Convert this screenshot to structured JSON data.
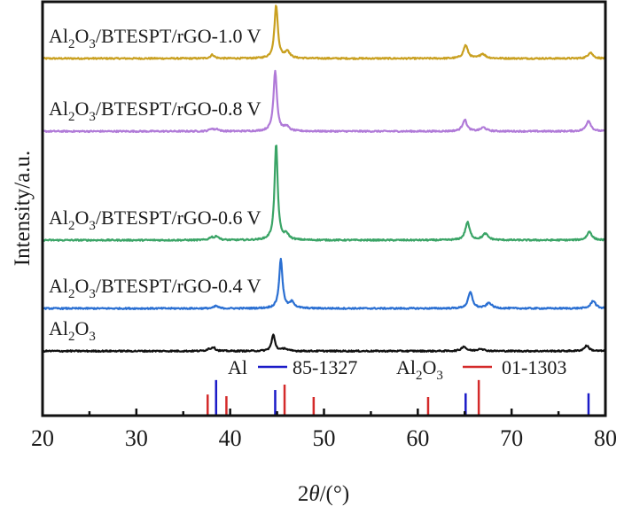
{
  "chart_data": {
    "type": "line",
    "title": "",
    "xlabel_prefix": "2",
    "xlabel_symbol": "θ",
    "xlabel_suffix": "/(°)",
    "ylabel": "Intensity/a.u.",
    "xlim": [
      20,
      80
    ],
    "ylim": [
      0,
      100
    ],
    "x_ticks": [
      20,
      30,
      40,
      50,
      60,
      70,
      80
    ],
    "x_tick_labels": [
      "20",
      "30",
      "40",
      "50",
      "60",
      "70",
      "80"
    ],
    "x_minor_step": 5,
    "grid": false,
    "y_ticks_shown": false,
    "series": [
      {
        "name": "Al2O3/BTESPT/rGO-1.0 V",
        "label_main": "Al",
        "label_sub1": "2",
        "label_mid": "O",
        "label_sub2": "3",
        "label_rest": "/BTESPT/rGO-1.0 V",
        "color": "#c9a020",
        "baseline": 86.3,
        "peaks": [
          [
            38.1,
            0.9,
            0.25
          ],
          [
            44.9,
            12.8,
            0.22
          ],
          [
            46.1,
            1.7,
            0.3
          ],
          [
            65.1,
            3.2,
            0.28
          ],
          [
            66.9,
            1.1,
            0.35
          ],
          [
            78.4,
            1.5,
            0.3
          ]
        ]
      },
      {
        "name": "Al2O3/BTESPT/rGO-0.8 V",
        "label_main": "Al",
        "label_sub1": "2",
        "label_mid": "O",
        "label_sub2": "3",
        "label_rest": "/BTESPT/rGO-0.8 V",
        "color": "#b07ad8",
        "baseline": 68.7,
        "peaks": [
          [
            38.0,
            0.6,
            0.25
          ],
          [
            38.6,
            0.5,
            0.25
          ],
          [
            44.8,
            14.6,
            0.22
          ],
          [
            46.0,
            1.1,
            0.3
          ],
          [
            65.0,
            2.8,
            0.28
          ],
          [
            67.0,
            0.9,
            0.35
          ],
          [
            78.2,
            2.6,
            0.3
          ]
        ]
      },
      {
        "name": "Al2O3/BTESPT/rGO-0.6 V",
        "label_main": "Al",
        "label_sub1": "2",
        "label_mid": "O",
        "label_sub2": "3",
        "label_rest": "/BTESPT/rGO-0.6 V",
        "color": "#3aa466",
        "baseline": 42.4,
        "peaks": [
          [
            38.0,
            0.7,
            0.25
          ],
          [
            38.6,
            0.9,
            0.25
          ],
          [
            44.9,
            23.3,
            0.2
          ],
          [
            46.0,
            1.3,
            0.3
          ],
          [
            65.3,
            4.3,
            0.28
          ],
          [
            67.2,
            1.5,
            0.35
          ],
          [
            78.3,
            2.1,
            0.3
          ]
        ]
      },
      {
        "name": "Al2O3/BTESPT/rGO-0.4 V",
        "label_main": "Al",
        "label_sub1": "2",
        "label_mid": "O",
        "label_sub2": "3",
        "label_rest": "/BTESPT/rGO-0.4 V",
        "color": "#2a6fd2",
        "baseline": 25.9,
        "peaks": [
          [
            38.5,
            0.6,
            0.25
          ],
          [
            45.4,
            11.8,
            0.22
          ],
          [
            46.6,
            1.5,
            0.3
          ],
          [
            65.6,
            3.9,
            0.28
          ],
          [
            67.6,
            1.3,
            0.35
          ],
          [
            78.7,
            1.9,
            0.3
          ]
        ]
      },
      {
        "name": "Al2O3",
        "label_main": "Al",
        "label_sub1": "2",
        "label_mid": "O",
        "label_sub2": "3",
        "label_rest": "",
        "color": "#111111",
        "baseline": 15.6,
        "peaks": [
          [
            37.7,
            0.4,
            0.25
          ],
          [
            38.2,
            0.9,
            0.25
          ],
          [
            44.6,
            3.9,
            0.22
          ],
          [
            45.8,
            0.6,
            0.3
          ],
          [
            64.9,
            1.1,
            0.3
          ],
          [
            66.7,
            0.6,
            0.35
          ],
          [
            78.0,
            1.3,
            0.3
          ]
        ]
      }
    ],
    "reference_patterns": [
      {
        "phase_main": "Al",
        "phase_sub1": "",
        "phase_mid": "",
        "phase_sub2": "",
        "card": "85-1327",
        "color": "#1b1bc8",
        "sticks": [
          [
            38.5,
            8.6
          ],
          [
            44.8,
            6.2
          ],
          [
            65.1,
            5.4
          ],
          [
            78.2,
            5.4
          ]
        ]
      },
      {
        "phase_main": "Al",
        "phase_sub1": "2",
        "phase_mid": "O",
        "phase_sub2": "3",
        "card": "01-1303",
        "color": "#d42a2a",
        "sticks": [
          [
            37.6,
            5.1
          ],
          [
            39.6,
            4.7
          ],
          [
            45.8,
            7.5
          ],
          [
            48.9,
            4.5
          ],
          [
            61.1,
            4.5
          ],
          [
            66.5,
            8.6
          ]
        ]
      }
    ]
  }
}
